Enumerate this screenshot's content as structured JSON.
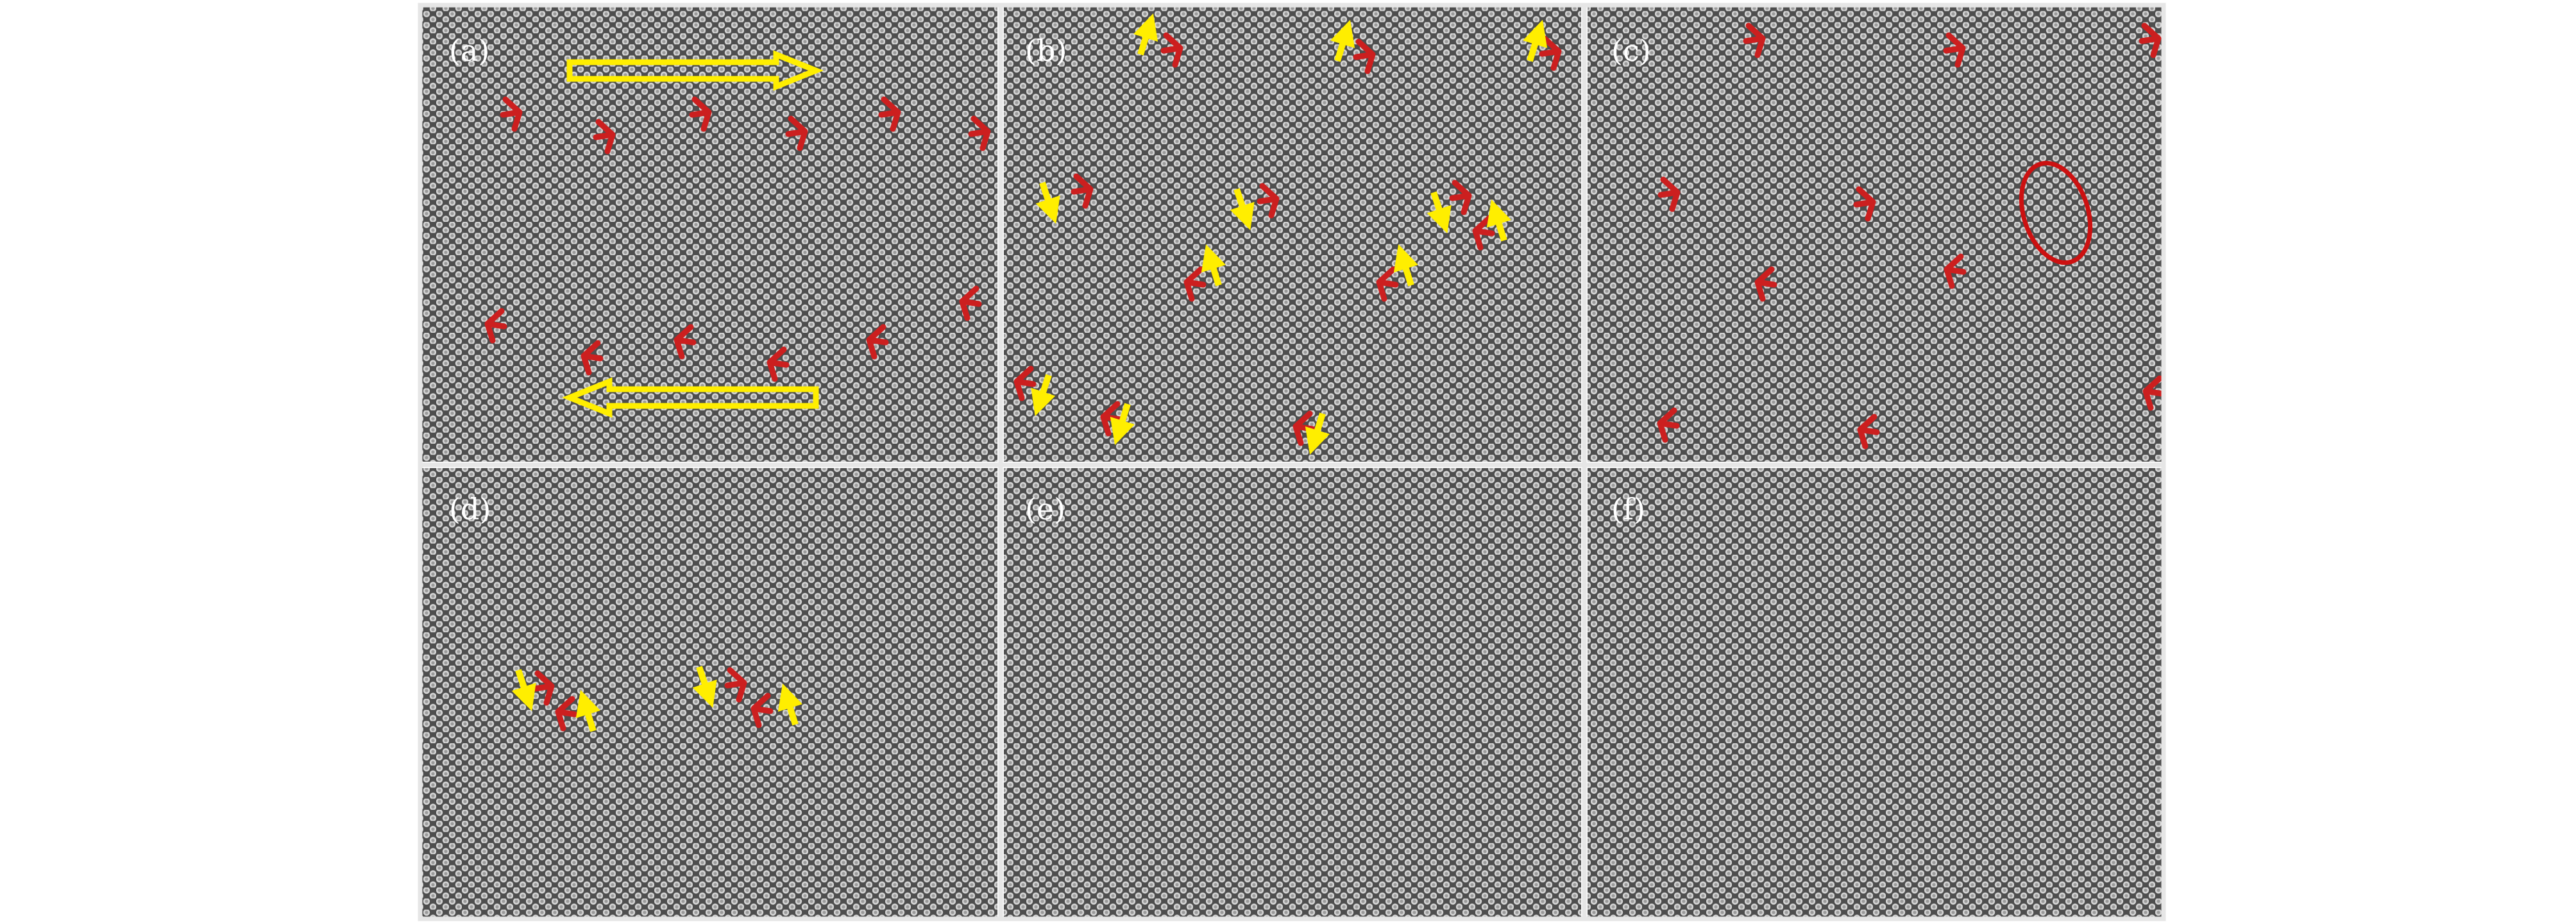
{
  "panels": [
    {
      "id": "a",
      "label": "(a)"
    },
    {
      "id": "b",
      "label": "(b)"
    },
    {
      "id": "c",
      "label": "(c)"
    },
    {
      "id": "d",
      "label": "(d)"
    },
    {
      "id": "e",
      "label": "(e)"
    },
    {
      "id": "f",
      "label": "(f)"
    }
  ],
  "colors": {
    "lattice_background": "#5a5a5a",
    "dislocation_marker": "#cc1f1f",
    "burgers_arrow": "#ffee00",
    "panel_border": "#e6e6e6",
    "shear_arrow_outline": "#ffee00",
    "highlight_ellipse": "#cc1111"
  },
  "icons": {
    "dislocation": "red-five-seven-dislocation-marker",
    "burgers_vector": "yellow-arrow",
    "shear_direction": "hollow-yellow-block-arrow",
    "highlight": "red-ellipse"
  }
}
